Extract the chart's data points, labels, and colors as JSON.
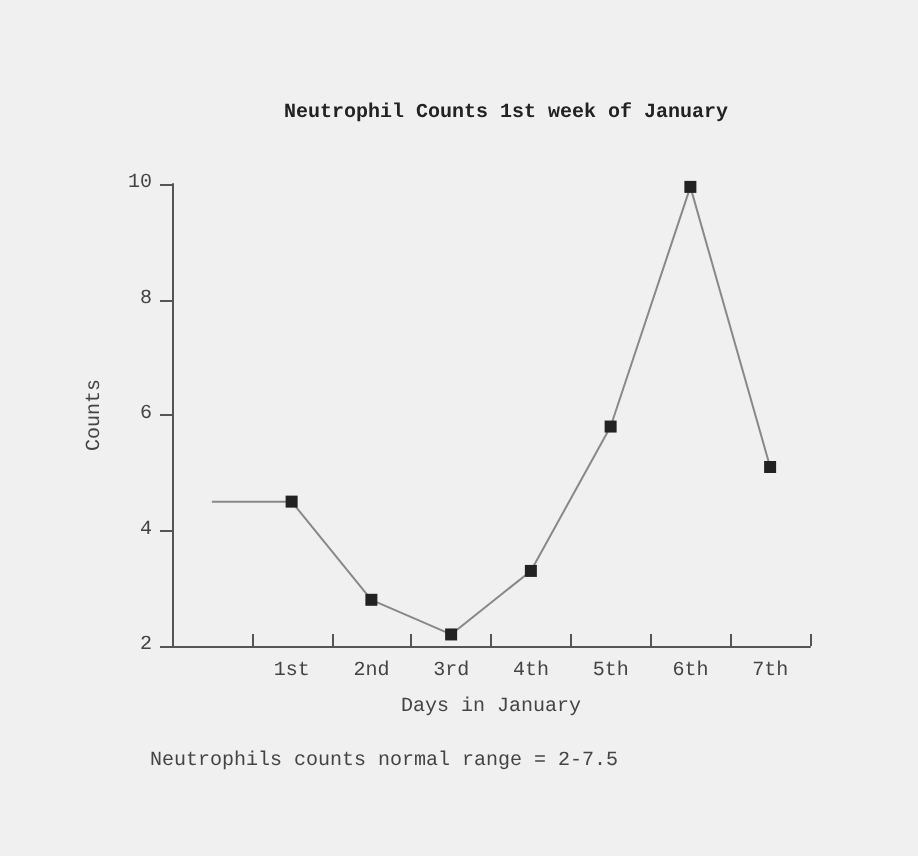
{
  "chart_data": {
    "type": "line",
    "title": "Neutrophil Counts 1st week of January",
    "xlabel": "Days in January",
    "ylabel": "Counts",
    "categories": [
      null,
      "1st",
      "2nd",
      "3rd",
      "4th",
      "5th",
      "6th",
      "7th"
    ],
    "series": [
      {
        "color": "#888888",
        "values": [
          4.5,
          4.5,
          2.8,
          2.2,
          3.3,
          5.8,
          9.95,
          5.1
        ]
      }
    ],
    "ylim": [
      2,
      10
    ],
    "yticks": [
      2,
      4,
      6,
      8,
      10
    ],
    "grid": false,
    "marker": "square",
    "line_style": "solid",
    "annotations": [
      "Neutrophils counts normal range = 2-7.5"
    ]
  }
}
